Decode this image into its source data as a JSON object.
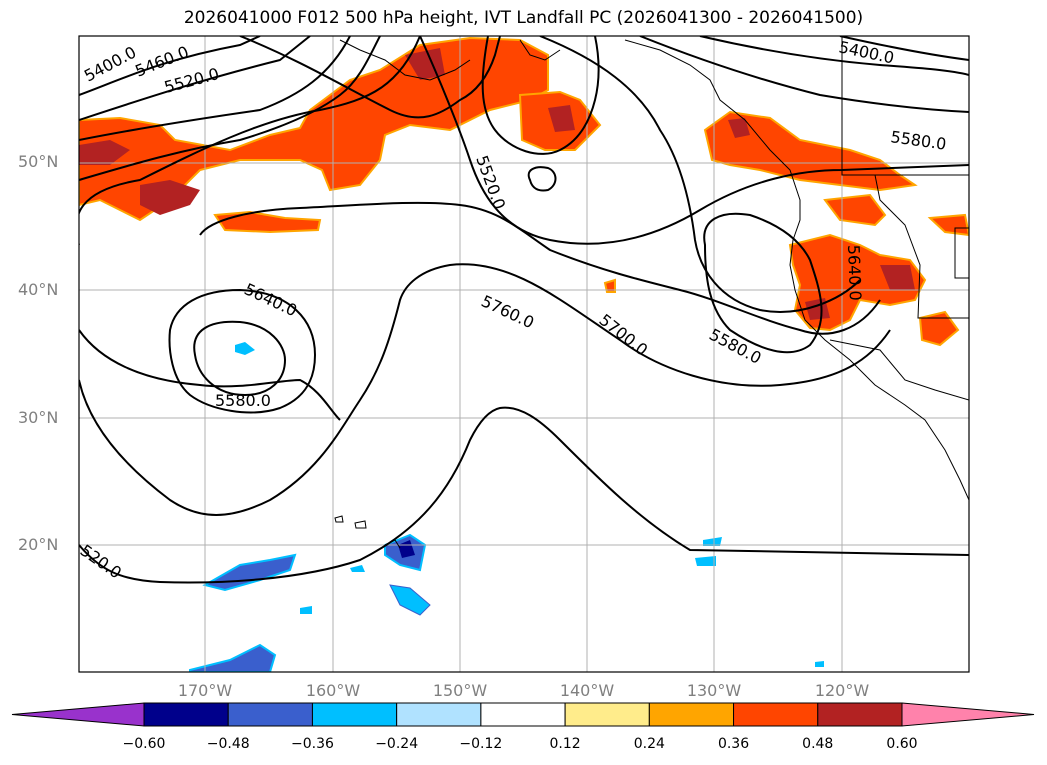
{
  "title": "2026041000 F012 500 hPa height, IVT Landfall PC (2026041300 - 2026041500)",
  "lat_labels": [
    "50°N",
    "40°N",
    "30°N",
    "20°N"
  ],
  "lon_labels": [
    "170°W",
    "160°W",
    "150°W",
    "140°W",
    "130°W",
    "120°W"
  ],
  "contour_labels": [
    "5400.0",
    "5460.0",
    "5520.0",
    "5400.0",
    "5580.0",
    "5520.0",
    "5640.0",
    "5640.0",
    "5580.0",
    "5760.0",
    "5700.0",
    "5580.0",
    "520.0"
  ],
  "colorbar": {
    "ticks": [
      "−0.60",
      "−0.48",
      "−0.36",
      "−0.24",
      "−0.12",
      "0.12",
      "0.24",
      "0.36",
      "0.48",
      "0.60"
    ],
    "colors": [
      "#9932cc",
      "#00008b",
      "#3a5fcd",
      "#00bfff",
      "#b0e2ff",
      "#ffffff",
      "#ffec8b",
      "#ffa500",
      "#ff4500",
      "#b22222",
      "#ff82ab"
    ]
  }
}
